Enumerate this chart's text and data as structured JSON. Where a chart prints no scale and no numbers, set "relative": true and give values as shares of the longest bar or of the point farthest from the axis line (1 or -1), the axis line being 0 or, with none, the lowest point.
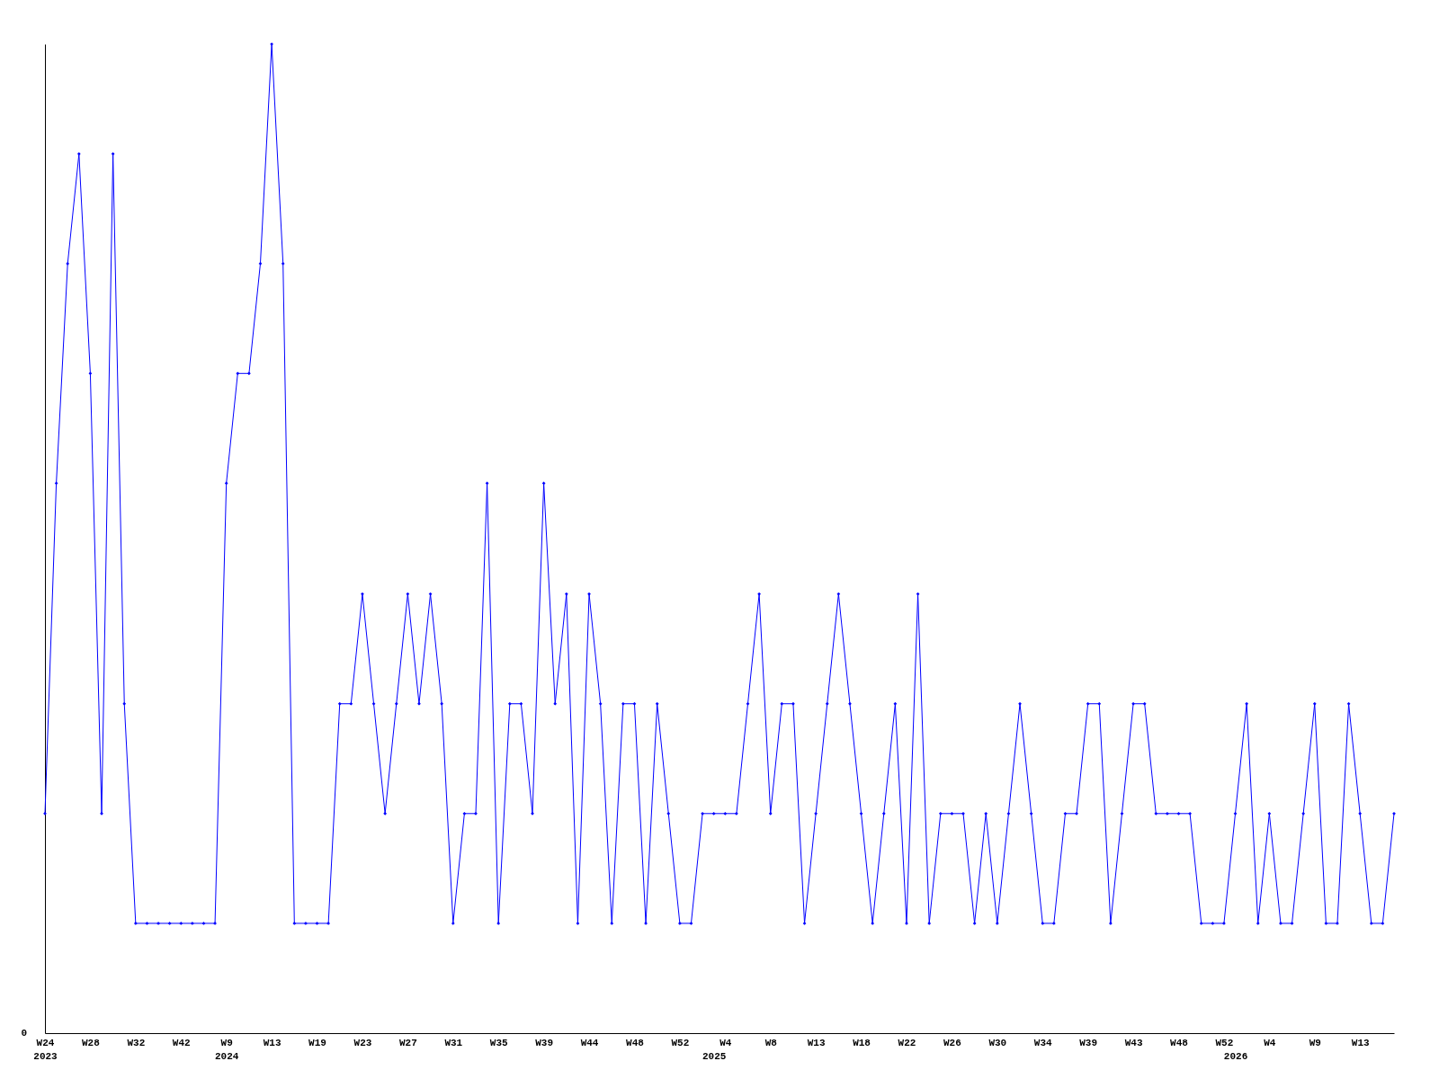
{
  "chart_data": {
    "type": "line",
    "relative": true,
    "color": "#0000ff",
    "marker": "diamond",
    "line_style": "solid",
    "annotations": [
      "0"
    ],
    "categories": [
      "W24\n2023",
      null,
      null,
      null,
      "W28",
      null,
      null,
      null,
      "W32",
      null,
      null,
      null,
      "W42",
      null,
      null,
      null,
      "W9\n2024",
      null,
      null,
      null,
      "W13",
      null,
      null,
      null,
      "W19",
      null,
      null,
      null,
      "W23",
      null,
      null,
      null,
      "W27",
      null,
      null,
      null,
      "W31",
      null,
      null,
      null,
      "W35",
      null,
      null,
      null,
      "W39",
      null,
      null,
      null,
      "W44",
      null,
      null,
      null,
      "W48",
      null,
      null,
      null,
      "W52",
      null,
      null,
      "\n2025",
      "W4",
      null,
      null,
      null,
      "W8",
      null,
      null,
      null,
      "W13",
      null,
      null,
      null,
      "W18",
      null,
      null,
      null,
      "W22",
      null,
      null,
      null,
      "W26",
      null,
      null,
      null,
      "W30",
      null,
      null,
      null,
      "W34",
      null,
      null,
      null,
      "W39",
      null,
      null,
      null,
      "W43",
      null,
      null,
      null,
      "W48",
      null,
      null,
      null,
      "W52",
      "\n2026",
      null,
      null,
      "W4",
      null,
      null,
      null,
      "W9",
      null,
      null,
      null,
      "W13",
      null,
      null,
      null
    ],
    "values": [
      0.222,
      0.556,
      0.778,
      0.889,
      0.667,
      0.222,
      0.889,
      0.333,
      0.111,
      0.111,
      0.111,
      0.111,
      0.111,
      0.111,
      0.111,
      0.111,
      0.556,
      0.667,
      0.667,
      0.778,
      1,
      0.778,
      0.111,
      0.111,
      0.111,
      0.111,
      0.333,
      0.333,
      0.444,
      0.333,
      0.222,
      0.333,
      0.444,
      0.333,
      0.444,
      0.333,
      0.111,
      0.222,
      0.222,
      0.556,
      0.111,
      0.333,
      0.333,
      0.222,
      0.556,
      0.333,
      0.444,
      0.111,
      0.444,
      0.333,
      0.111,
      0.333,
      0.333,
      0.111,
      0.333,
      0.222,
      0.111,
      0.111,
      0.222,
      0.222,
      0.222,
      0.222,
      0.333,
      0.444,
      0.222,
      0.333,
      0.333,
      0.111,
      0.222,
      0.333,
      0.444,
      0.333,
      0.222,
      0.111,
      0.222,
      0.333,
      0.111,
      0.444,
      0.111,
      0.222,
      0.222,
      0.222,
      0.111,
      0.222,
      0.111,
      0.222,
      0.333,
      0.222,
      0.111,
      0.111,
      0.222,
      0.222,
      0.333,
      0.333,
      0.111,
      0.222,
      0.333,
      0.333,
      0.222,
      0.222,
      0.222,
      0.222,
      0.111,
      0.111,
      0.111,
      0.222,
      0.333,
      0.111,
      0.222,
      0.111,
      0.111,
      0.222,
      0.333,
      0.111,
      0.111,
      0.333,
      0.222,
      0.111,
      0.111,
      0.222
    ]
  }
}
